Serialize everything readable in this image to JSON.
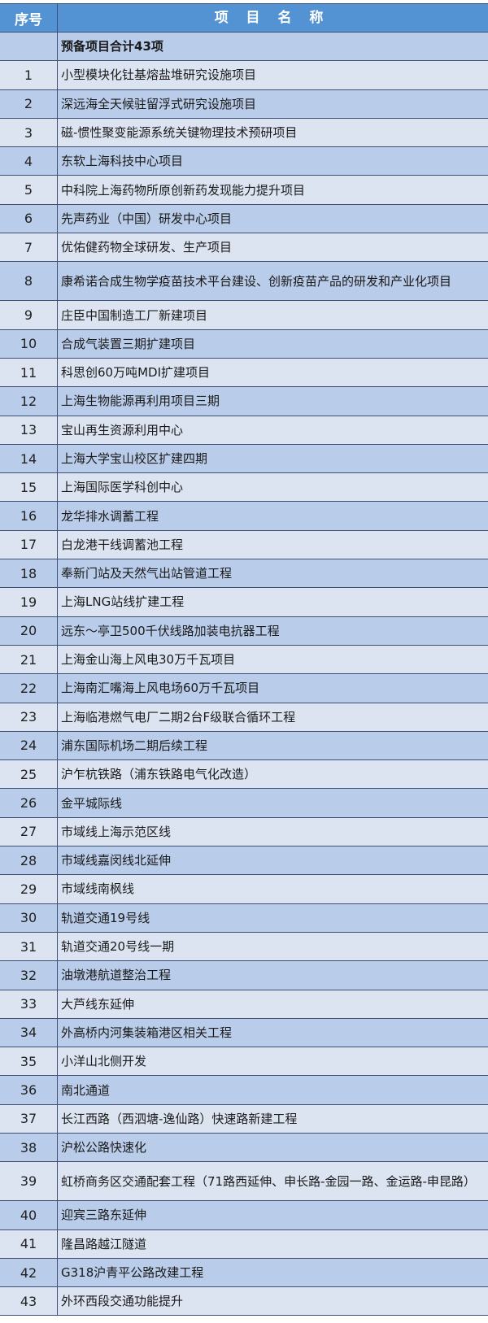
{
  "header": {
    "index_label": "序号",
    "name_label": "项 目 名 称"
  },
  "summary": "预备项目合计43项",
  "rows": [
    {
      "no": "1",
      "name": "小型模块化钍基熔盐堆研究设施项目"
    },
    {
      "no": "2",
      "name": "深远海全天候驻留浮式研究设施项目"
    },
    {
      "no": "3",
      "name": "磁-惯性聚变能源系统关键物理技术预研项目"
    },
    {
      "no": "4",
      "name": "东软上海科技中心项目"
    },
    {
      "no": "5",
      "name": "中科院上海药物所原创新药发现能力提升项目"
    },
    {
      "no": "6",
      "name": "先声药业（中国）研发中心项目"
    },
    {
      "no": "7",
      "name": "优佑健药物全球研发、生产项目"
    },
    {
      "no": "8",
      "name": "康希诺合成生物学疫苗技术平台建设、创新疫苗产品的研发和产业化项目"
    },
    {
      "no": "9",
      "name": "庄臣中国制造工厂新建项目"
    },
    {
      "no": "10",
      "name": "合成气装置三期扩建项目"
    },
    {
      "no": "11",
      "name": "科思创60万吨MDI扩建项目"
    },
    {
      "no": "12",
      "name": "上海生物能源再利用项目三期"
    },
    {
      "no": "13",
      "name": "宝山再生资源利用中心"
    },
    {
      "no": "14",
      "name": "上海大学宝山校区扩建四期"
    },
    {
      "no": "15",
      "name": "上海国际医学科创中心"
    },
    {
      "no": "16",
      "name": "龙华排水调蓄工程"
    },
    {
      "no": "17",
      "name": "白龙港干线调蓄池工程"
    },
    {
      "no": "18",
      "name": "奉新门站及天然气出站管道工程"
    },
    {
      "no": "19",
      "name": "上海LNG站线扩建工程"
    },
    {
      "no": "20",
      "name": "远东～亭卫500千伏线路加装电抗器工程"
    },
    {
      "no": "21",
      "name": "上海金山海上风电30万千瓦项目"
    },
    {
      "no": "22",
      "name": "上海南汇嘴海上风电场60万千瓦项目"
    },
    {
      "no": "23",
      "name": "上海临港燃气电厂二期2台F级联合循环工程"
    },
    {
      "no": "24",
      "name": "浦东国际机场二期后续工程"
    },
    {
      "no": "25",
      "name": "沪乍杭铁路（浦东铁路电气化改造）"
    },
    {
      "no": "26",
      "name": "金平城际线"
    },
    {
      "no": "27",
      "name": "市域线上海示范区线"
    },
    {
      "no": "28",
      "name": "市域线嘉闵线北延伸"
    },
    {
      "no": "29",
      "name": "市域线南枫线"
    },
    {
      "no": "30",
      "name": "轨道交通19号线"
    },
    {
      "no": "31",
      "name": "轨道交通20号线一期"
    },
    {
      "no": "32",
      "name": "油墩港航道整治工程"
    },
    {
      "no": "33",
      "name": "大芦线东延伸"
    },
    {
      "no": "34",
      "name": "外高桥内河集装箱港区相关工程"
    },
    {
      "no": "35",
      "name": "小洋山北侧开发"
    },
    {
      "no": "36",
      "name": "南北通道"
    },
    {
      "no": "37",
      "name": "长江西路（西泗塘-逸仙路）快速路新建工程"
    },
    {
      "no": "38",
      "name": "沪松公路快速化"
    },
    {
      "no": "39",
      "name": "虹桥商务区交通配套工程（71路西延伸、申长路-金园一路、金运路-申昆路）"
    },
    {
      "no": "40",
      "name": "迎宾三路东延伸"
    },
    {
      "no": "41",
      "name": "隆昌路越江隧道"
    },
    {
      "no": "42",
      "name": "G318沪青平公路改建工程"
    },
    {
      "no": "43",
      "name": "外环西段交通功能提升"
    }
  ],
  "colors": {
    "header": "#5393d3",
    "row_dark": "#b9cce9",
    "row_light": "#dce4f2",
    "border": "#3d4f73"
  }
}
